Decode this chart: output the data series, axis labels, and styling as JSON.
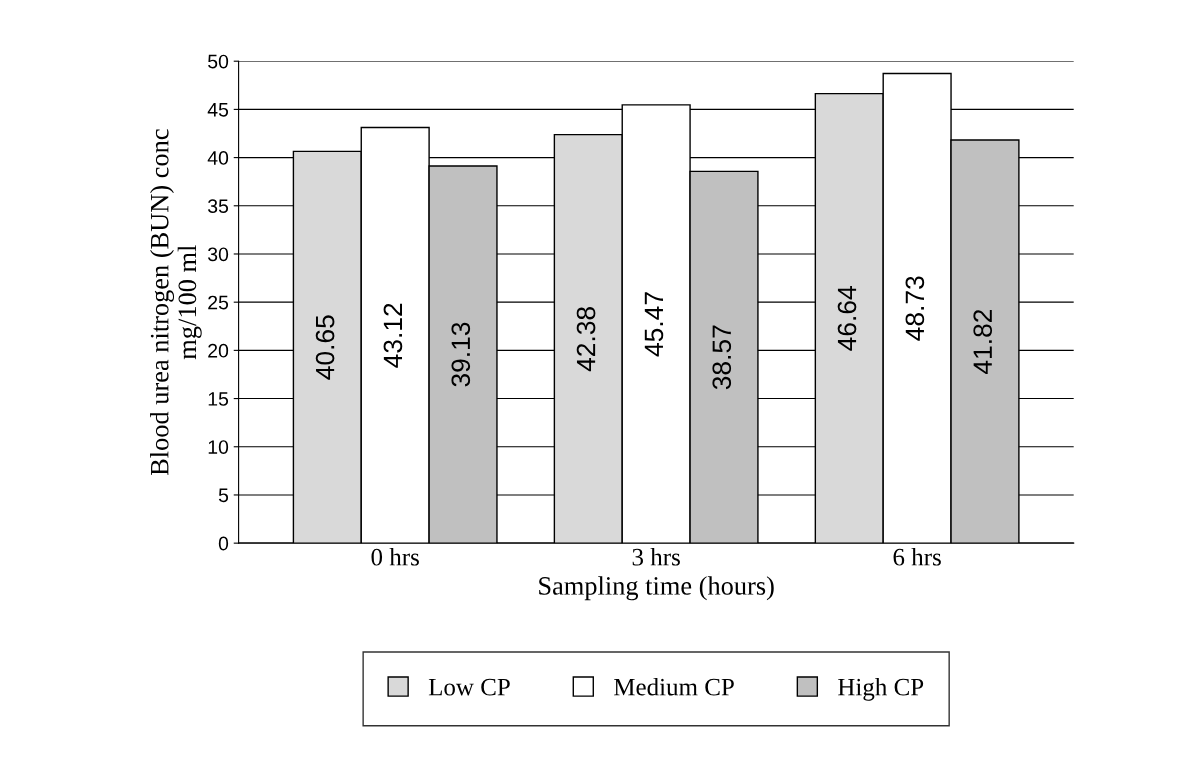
{
  "chart_data": {
    "type": "bar",
    "xlabel": "Sampling time (hours)",
    "ylabel": "Blood urea nitrogen (BUN) conc\nmg/100 ml",
    "categories": [
      "0 hrs",
      "3 hrs",
      "6 hrs"
    ],
    "series": [
      {
        "name": "Low CP",
        "color": "#d9d9d9",
        "values": [
          40.65,
          42.38,
          46.64
        ]
      },
      {
        "name": "Medium CP",
        "color": "#ffffff",
        "values": [
          43.12,
          45.47,
          48.73
        ]
      },
      {
        "name": "High CP",
        "color": "#c0c0c0",
        "values": [
          39.13,
          38.57,
          41.82
        ]
      }
    ],
    "ylim": [
      0,
      50
    ],
    "yticks": [
      0,
      5,
      10,
      15,
      20,
      25,
      30,
      35,
      40,
      45,
      50
    ],
    "grid": "y",
    "legend": "bottom",
    "data_labels": true
  }
}
